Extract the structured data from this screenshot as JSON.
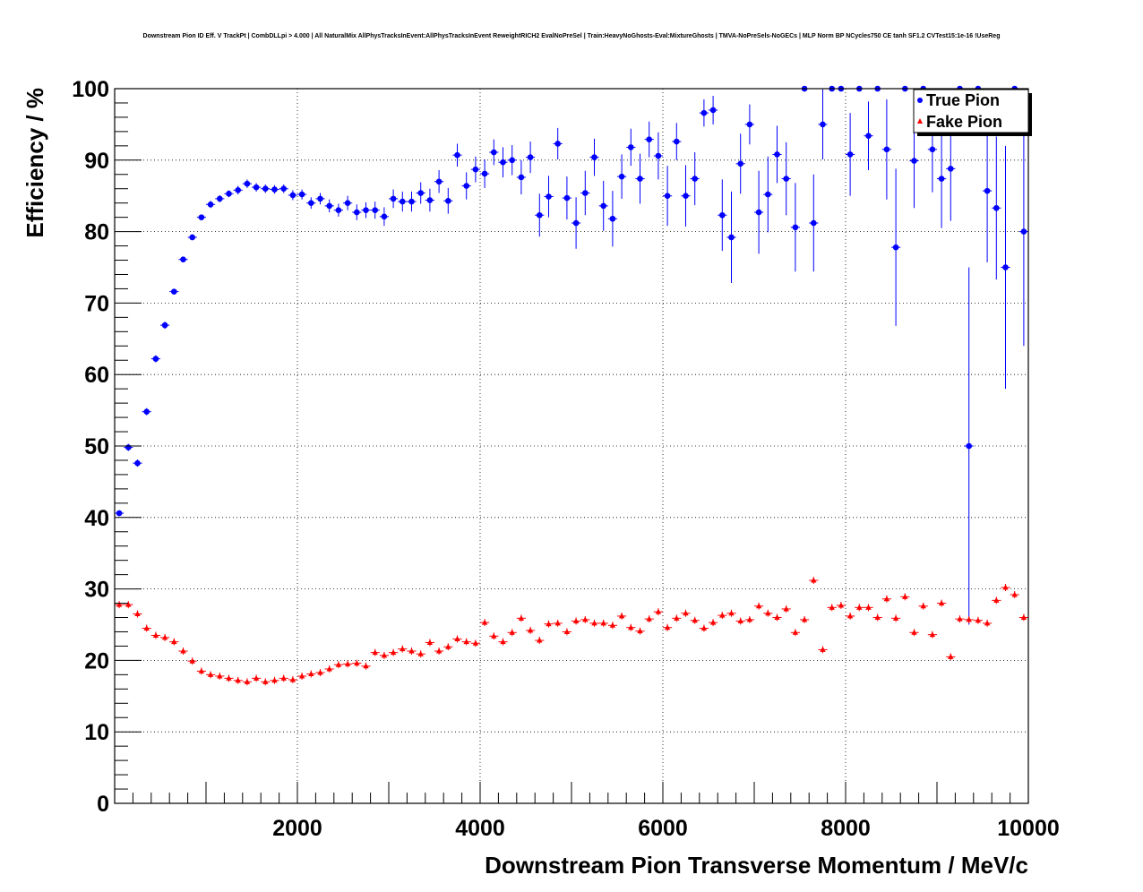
{
  "chart_data": {
    "type": "scatter",
    "title": "Downstream Pion ID Eff. V TrackPt | CombDLLpi > 4.000 | All NaturalMix AllPhysTracksInEvent:AllPhysTracksInEvent ReweightRICH2 EvalNoPreSel | Train:HeavyNoGhosts-Eval:MixtureGhosts | TMVA-NoPreSels-NoGECs | MLP Norm BP NCycles750 CE tanh SF1.2 CVTest15:1e-16 !UseReg",
    "xlabel": "Downstream Pion Transverse Momentum / MeV/c",
    "ylabel": "Efficiency / %",
    "xlim": [
      0,
      10000
    ],
    "ylim": [
      0,
      100
    ],
    "xticks": [
      2000,
      4000,
      6000,
      8000,
      10000
    ],
    "xtick_labels": [
      "2000",
      "4000",
      "6000",
      "8000",
      "10000"
    ],
    "yticks": [
      0,
      10,
      20,
      30,
      40,
      50,
      60,
      70,
      80,
      90,
      100
    ],
    "ytick_labels": [
      "0",
      "10",
      "20",
      "30",
      "40",
      "50",
      "60",
      "70",
      "80",
      "90",
      "100"
    ],
    "grid": true,
    "legend_position": "top-right",
    "bin_width": 100,
    "x": [
      50,
      150,
      250,
      350,
      450,
      550,
      650,
      750,
      850,
      950,
      1050,
      1150,
      1250,
      1350,
      1450,
      1550,
      1650,
      1750,
      1850,
      1950,
      2050,
      2150,
      2250,
      2350,
      2450,
      2550,
      2650,
      2750,
      2850,
      2950,
      3050,
      3150,
      3250,
      3350,
      3450,
      3550,
      3650,
      3750,
      3850,
      3950,
      4050,
      4150,
      4250,
      4350,
      4450,
      4550,
      4650,
      4750,
      4850,
      4950,
      5050,
      5150,
      5250,
      5350,
      5450,
      5550,
      5650,
      5750,
      5850,
      5950,
      6050,
      6150,
      6250,
      6350,
      6450,
      6550,
      6650,
      6750,
      6850,
      6950,
      7050,
      7150,
      7250,
      7350,
      7450,
      7550,
      7650,
      7750,
      7850,
      7950,
      8050,
      8150,
      8250,
      8350,
      8450,
      8550,
      8650,
      8750,
      8850,
      8950,
      9050,
      9150,
      9250,
      9350,
      9450,
      9550,
      9650,
      9750,
      9850,
      9950
    ],
    "series": [
      {
        "name": "True Pion",
        "color": "#0000ff",
        "marker": "circle",
        "values": [
          40.6,
          49.8,
          47.6,
          54.8,
          62.2,
          66.9,
          71.6,
          76.1,
          79.2,
          82.0,
          83.8,
          84.6,
          85.3,
          85.8,
          86.7,
          86.2,
          86.0,
          85.9,
          86.0,
          85.1,
          85.2,
          84.0,
          84.6,
          83.6,
          83.0,
          84.0,
          82.7,
          83.0,
          83.0,
          82.1,
          84.6,
          84.2,
          84.2,
          85.4,
          84.4,
          87.0,
          84.3,
          90.7,
          86.4,
          88.7,
          88.1,
          91.1,
          89.7,
          90.0,
          87.6,
          90.4,
          82.3,
          84.9,
          92.3,
          84.7,
          81.2,
          85.4,
          90.4,
          83.6,
          81.8,
          87.7,
          91.8,
          87.4,
          92.9,
          90.6,
          85.0,
          92.6,
          85.0,
          87.4,
          96.6,
          97.0,
          82.3,
          79.2,
          89.5,
          95.0,
          82.7,
          85.2,
          90.8,
          87.4,
          80.6,
          100,
          81.2,
          95.0,
          100,
          100,
          90.8,
          100,
          93.4,
          100,
          91.5,
          77.8,
          100,
          89.9,
          100,
          91.5,
          87.4,
          88.8,
          100,
          50.0,
          100,
          85.7,
          83.3,
          75.0,
          100,
          80.0
        ],
        "errors": [
          0.4,
          0.5,
          0.5,
          0.5,
          0.5,
          0.5,
          0.4,
          0.4,
          0.4,
          0.4,
          0.5,
          0.5,
          0.5,
          0.6,
          0.6,
          0.6,
          0.6,
          0.6,
          0.6,
          0.7,
          0.7,
          0.8,
          0.8,
          0.9,
          0.9,
          1.0,
          1.1,
          1.1,
          1.2,
          1.3,
          1.3,
          1.4,
          1.4,
          1.5,
          1.6,
          1.6,
          1.8,
          1.6,
          1.9,
          1.8,
          2.0,
          1.8,
          2.1,
          2.1,
          2.4,
          2.2,
          3.0,
          2.9,
          2.2,
          3.0,
          3.6,
          3.1,
          2.6,
          3.5,
          3.9,
          3.1,
          2.6,
          3.5,
          2.5,
          3.3,
          4.2,
          2.6,
          4.3,
          3.7,
          1.9,
          2.0,
          5.0,
          6.4,
          4.2,
          2.8,
          5.8,
          5.3,
          4.0,
          5.1,
          6.2,
          0,
          6.8,
          4.9,
          0,
          0,
          5.8,
          0,
          4.8,
          0,
          7.0,
          11.0,
          0,
          6.6,
          0,
          6.0,
          6.9,
          7.3,
          0,
          25.0,
          0,
          10.0,
          10.0,
          17.0,
          0,
          16.0
        ]
      },
      {
        "name": "Fake Pion",
        "color": "#ff0000",
        "marker": "triangle",
        "values": [
          27.8,
          27.8,
          26.5,
          24.5,
          23.5,
          23.2,
          22.6,
          21.3,
          19.9,
          18.5,
          18.0,
          17.8,
          17.5,
          17.2,
          17.0,
          17.5,
          17.0,
          17.2,
          17.5,
          17.3,
          17.8,
          18.1,
          18.3,
          18.8,
          19.4,
          19.5,
          19.6,
          19.2,
          21.1,
          20.7,
          21.1,
          21.6,
          21.3,
          20.9,
          22.5,
          21.3,
          21.9,
          23.0,
          22.6,
          22.4,
          25.3,
          23.4,
          22.6,
          23.9,
          25.9,
          24.2,
          22.8,
          25.1,
          25.2,
          24.0,
          25.5,
          25.7,
          25.2,
          25.2,
          24.9,
          26.2,
          24.6,
          24.1,
          25.8,
          26.8,
          24.6,
          25.9,
          26.6,
          25.6,
          24.5,
          25.3,
          26.3,
          26.6,
          25.5,
          25.7,
          27.6,
          26.6,
          26.0,
          27.2,
          23.9,
          25.7,
          31.2,
          21.5,
          27.4,
          27.7,
          26.2,
          27.4,
          27.4,
          26.0,
          28.6,
          25.9,
          28.9,
          23.9,
          27.6,
          23.6,
          28.0,
          20.5,
          25.8,
          25.7,
          25.6,
          25.2,
          28.4,
          30.2,
          29.2,
          26.0
        ]
      }
    ]
  }
}
